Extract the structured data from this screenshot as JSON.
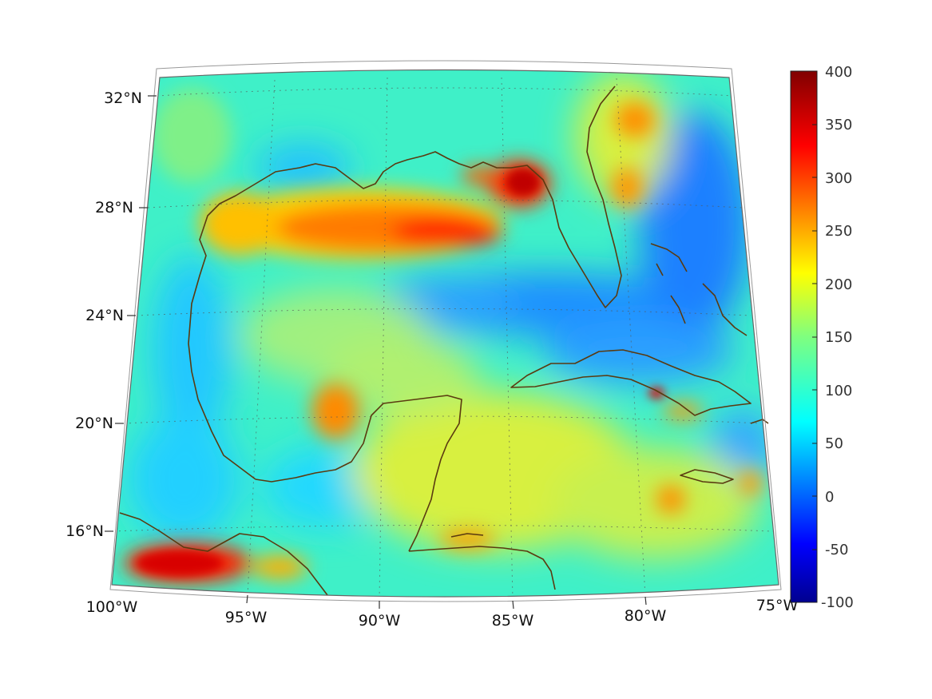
{
  "map": {
    "region": "Gulf of Mexico and Caribbean",
    "quantity_colormap": "jet",
    "lon_labels": [
      "100°W",
      "95°W",
      "90°W",
      "85°W",
      "80°W",
      "75°W"
    ],
    "lat_labels": [
      "32°N",
      "28°N",
      "24°N",
      "20°N",
      "16°N"
    ],
    "coast_color": "#5a3a10",
    "grid": "dotted"
  },
  "colorbar": {
    "min": -100,
    "max": 400,
    "labels": [
      "400",
      "350",
      "300",
      "250",
      "200",
      "150",
      "100",
      "50",
      "0",
      "-50",
      "-100"
    ]
  },
  "chart_data": {
    "type": "heatmap",
    "xlim": [
      -100,
      -75
    ],
    "ylim": [
      14,
      33
    ],
    "color_range": [
      -100,
      400
    ],
    "features": [
      {
        "name": "northern gulf band",
        "lon": -88,
        "lat": 27.5,
        "value": 320
      },
      {
        "name": "florida panhandle max",
        "lon": -84.3,
        "lat": 29.2,
        "value": 360
      },
      {
        "name": "southwest pacific max",
        "lon": -98,
        "lat": 15,
        "value": 370
      },
      {
        "name": "campeche bay max",
        "lon": -92,
        "lat": 20.5,
        "value": 270
      },
      {
        "name": "florida straits min",
        "lon": -82,
        "lat": 25,
        "value": 40
      },
      {
        "name": "atlantic east min",
        "lon": -76,
        "lat": 27,
        "value": 50
      },
      {
        "name": "georgia coast max",
        "lon": -79.3,
        "lat": 30.5,
        "value": 260
      }
    ]
  }
}
